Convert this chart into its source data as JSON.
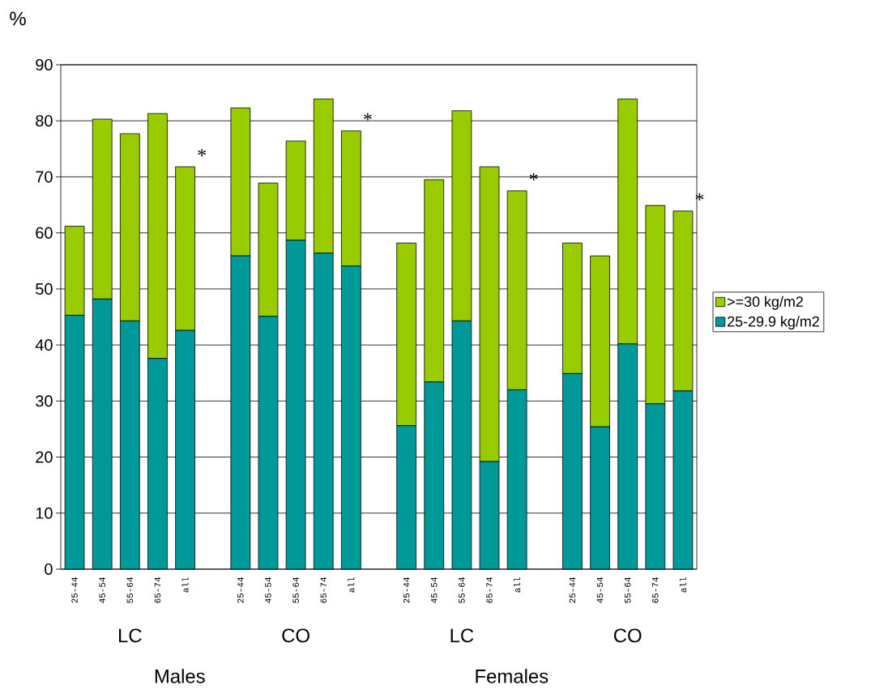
{
  "chart_data": {
    "type": "bar",
    "stacked": true,
    "ylabel": "%",
    "categories": [
      "25-44",
      "45-54",
      "55-64",
      "65-74",
      "all",
      null,
      "25-44",
      "45-54",
      "55-64",
      "65-74",
      "all",
      null,
      "25-44",
      "45-54",
      "55-64",
      "65-74",
      "all",
      null,
      "25-44",
      "45-54",
      "55-64",
      "65-74",
      "all"
    ],
    "series": [
      {
        "name": "25-29.9 kg/m2",
        "color": "#009999",
        "values": [
          45.3,
          48.2,
          44.3,
          37.6,
          42.6,
          null,
          55.9,
          45.1,
          58.7,
          56.4,
          54.1,
          null,
          25.6,
          33.4,
          44.3,
          19.2,
          32.0,
          null,
          34.9,
          25.4,
          40.2,
          29.5,
          31.8
        ]
      },
      {
        "name": ">=30 kg/m2",
        "color": "#99cc00",
        "values": [
          15.9,
          32.1,
          33.4,
          43.7,
          29.2,
          null,
          26.4,
          23.8,
          17.7,
          27.5,
          24.1,
          null,
          32.6,
          36.1,
          37.5,
          52.6,
          35.5,
          null,
          23.3,
          30.5,
          43.7,
          35.4,
          32.1
        ]
      }
    ],
    "ylim": [
      0,
      90
    ],
    "yticks": [
      0,
      10,
      20,
      30,
      40,
      50,
      60,
      70,
      80,
      90
    ],
    "grid": "y",
    "legend": "right",
    "annotations": [
      "LC",
      "CO",
      "LC",
      "CO",
      "Males",
      "Females",
      "*",
      "*",
      "*",
      "*"
    ]
  }
}
